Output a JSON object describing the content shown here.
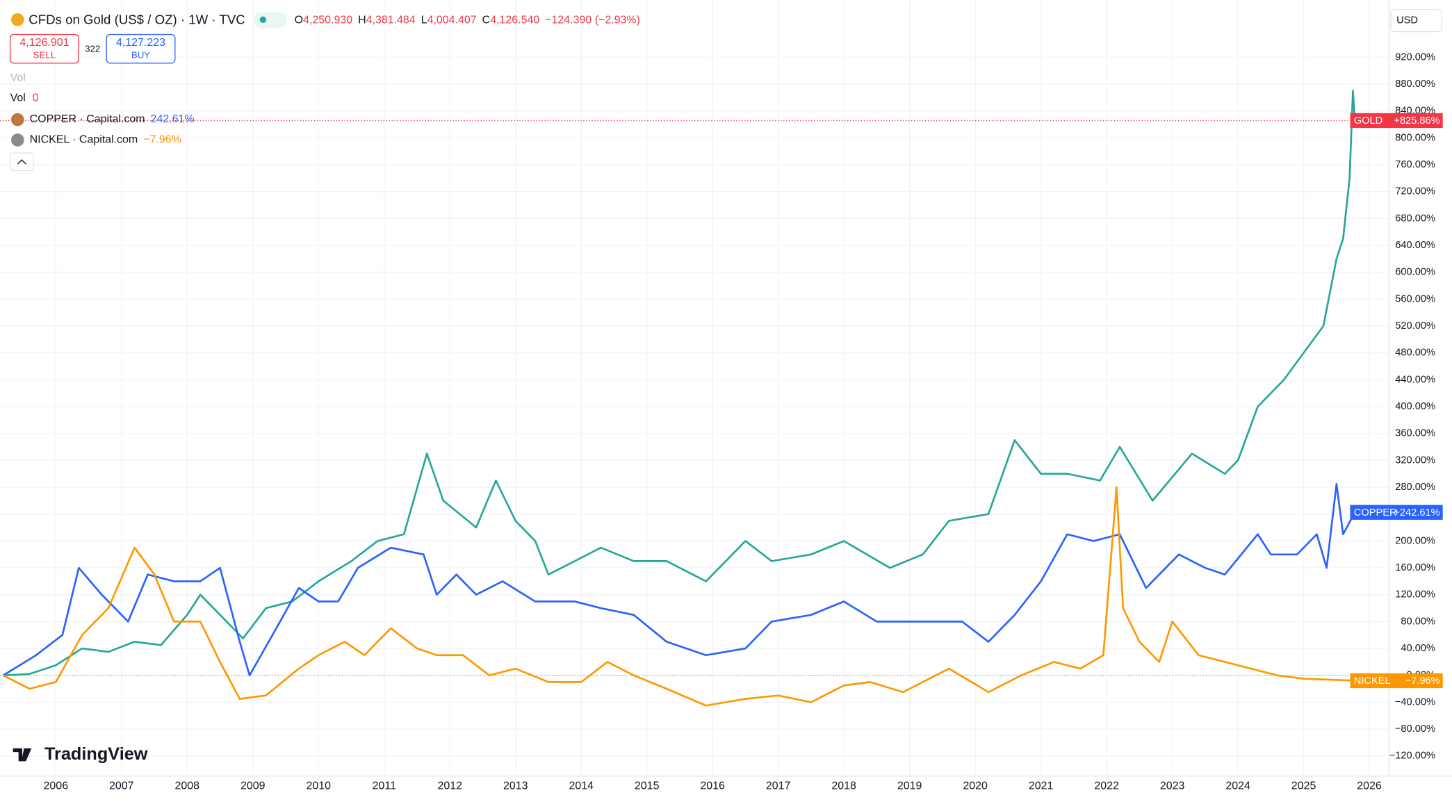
{
  "header": {
    "title": "CFDs on Gold (US$ / OZ) · 1W · TVC",
    "ohlc": [
      {
        "key": "O",
        "value": "4,250.930"
      },
      {
        "key": "H",
        "value": "4,381.484"
      },
      {
        "key": "L",
        "value": "4,004.407"
      },
      {
        "key": "C",
        "value": "4,126.540"
      }
    ],
    "change": "−124.390 (−2.93%)",
    "sell_price": "4,126.901",
    "sell": "SELL",
    "spread": "322",
    "buy_price": "4,127.223",
    "buy": "BUY",
    "vol": "Vol",
    "vol2": "Vol",
    "vol_value": "0",
    "currency": "USD",
    "brand": "TradingView"
  },
  "chart_data": {
    "type": "line",
    "xlim": [
      2005.15,
      2026.3
    ],
    "xticks": [
      2006,
      2007,
      2008,
      2009,
      2010,
      2011,
      2012,
      2013,
      2014,
      2015,
      2016,
      2017,
      2018,
      2019,
      2020,
      2021,
      2022,
      2023,
      2024,
      2025,
      2026
    ],
    "ylim": [
      -150,
      1005
    ],
    "yticks": [
      {
        "value": -120,
        "label": "−120.00%"
      },
      {
        "value": -80,
        "label": "−80.00%"
      },
      {
        "value": -40,
        "label": "−40.00%"
      },
      {
        "value": 0,
        "label": "0.00%"
      },
      {
        "value": 40,
        "label": "40.00%"
      },
      {
        "value": 80,
        "label": "80.00%"
      },
      {
        "value": 120,
        "label": "120.00%"
      },
      {
        "value": 160,
        "label": "160.00%"
      },
      {
        "value": 200,
        "label": "200.00%"
      },
      {
        "value": 240,
        "label": "240.00%"
      },
      {
        "value": 280,
        "label": "280.00%"
      },
      {
        "value": 320,
        "label": "320.00%"
      },
      {
        "value": 360,
        "label": "360.00%"
      },
      {
        "value": 400,
        "label": "400.00%"
      },
      {
        "value": 440,
        "label": "440.00%"
      },
      {
        "value": 480,
        "label": "480.00%"
      },
      {
        "value": 520,
        "label": "520.00%"
      },
      {
        "value": 560,
        "label": "560.00%"
      },
      {
        "value": 600,
        "label": "600.00%"
      },
      {
        "value": 640,
        "label": "640.00%"
      },
      {
        "value": 680,
        "label": "680.00%"
      },
      {
        "value": 720,
        "label": "720.00%"
      },
      {
        "value": 760,
        "label": "760.00%"
      },
      {
        "value": 800,
        "label": "800.00%"
      },
      {
        "value": 840,
        "label": "840.00%"
      },
      {
        "value": 880,
        "label": "880.00%"
      },
      {
        "value": 920,
        "label": "920.00%"
      }
    ],
    "grid": true,
    "series": [
      {
        "name": "GOLD",
        "color": "#26a69a",
        "label_color": "#f23645",
        "last_label": "+825.86%",
        "x": [
          2005.2,
          2005.6,
          2006.0,
          2006.4,
          2006.8,
          2007.2,
          2007.6,
          2008.0,
          2008.2,
          2008.6,
          2008.85,
          2009.2,
          2009.6,
          2010.0,
          2010.5,
          2010.9,
          2011.3,
          2011.65,
          2011.9,
          2012.4,
          2012.7,
          2013.0,
          2013.3,
          2013.5,
          2013.9,
          2014.3,
          2014.8,
          2015.3,
          2015.9,
          2016.5,
          2016.9,
          2017.5,
          2018.0,
          2018.7,
          2019.2,
          2019.6,
          2020.2,
          2020.6,
          2021.0,
          2021.4,
          2021.9,
          2022.2,
          2022.7,
          2023.3,
          2023.8,
          2024.0,
          2024.3,
          2024.7,
          2025.0,
          2025.3,
          2025.5,
          2025.6,
          2025.7,
          2025.75,
          2025.78
        ],
        "values": [
          0,
          2,
          15,
          40,
          35,
          50,
          45,
          90,
          120,
          80,
          55,
          100,
          110,
          140,
          170,
          200,
          210,
          330,
          260,
          220,
          290,
          230,
          200,
          150,
          170,
          190,
          170,
          170,
          140,
          200,
          170,
          180,
          200,
          160,
          180,
          230,
          240,
          350,
          300,
          300,
          290,
          340,
          260,
          330,
          300,
          320,
          400,
          440,
          480,
          520,
          620,
          650,
          740,
          870,
          825.86
        ]
      },
      {
        "name": "COPPER",
        "color": "#2962ff",
        "label_color": "#2962ff",
        "last_label": "+242.61%",
        "legend": "COPPER · Capital.com",
        "legend_value": "242.61%",
        "x": [
          2005.2,
          2005.7,
          2006.1,
          2006.35,
          2006.7,
          2007.1,
          2007.4,
          2007.8,
          2008.2,
          2008.5,
          2008.8,
          2008.95,
          2009.3,
          2009.7,
          2010.0,
          2010.3,
          2010.6,
          2011.1,
          2011.6,
          2011.8,
          2012.1,
          2012.4,
          2012.8,
          2013.3,
          2013.9,
          2014.3,
          2014.8,
          2015.3,
          2015.9,
          2016.5,
          2016.9,
          2017.5,
          2018.0,
          2018.5,
          2019.2,
          2019.8,
          2020.2,
          2020.6,
          2021.0,
          2021.4,
          2021.8,
          2022.2,
          2022.6,
          2023.1,
          2023.5,
          2023.8,
          2024.3,
          2024.5,
          2024.9,
          2025.2,
          2025.35,
          2025.5,
          2025.6,
          2025.78
        ],
        "values": [
          0,
          30,
          60,
          160,
          120,
          80,
          150,
          140,
          140,
          160,
          50,
          0,
          60,
          130,
          110,
          110,
          160,
          190,
          180,
          120,
          150,
          120,
          140,
          110,
          110,
          100,
          90,
          50,
          30,
          40,
          80,
          90,
          110,
          80,
          80,
          80,
          50,
          90,
          140,
          210,
          200,
          210,
          130,
          180,
          160,
          150,
          210,
          180,
          180,
          210,
          160,
          285,
          210,
          242.61
        ]
      },
      {
        "name": "NICKEL",
        "color": "#ff9800",
        "label_color": "#ff9800",
        "last_label": "−7.96%",
        "legend": "NICKEL · Capital.com",
        "legend_value": "−7.96%",
        "x": [
          2005.2,
          2005.6,
          2006.0,
          2006.4,
          2006.8,
          2007.2,
          2007.5,
          2007.8,
          2008.2,
          2008.5,
          2008.8,
          2009.2,
          2009.7,
          2010.0,
          2010.4,
          2010.7,
          2011.1,
          2011.5,
          2011.8,
          2012.2,
          2012.6,
          2013.0,
          2013.5,
          2014.0,
          2014.4,
          2014.8,
          2015.3,
          2015.9,
          2016.5,
          2017.0,
          2017.5,
          2018.0,
          2018.4,
          2018.9,
          2019.6,
          2020.2,
          2020.7,
          2021.2,
          2021.6,
          2021.95,
          2022.15,
          2022.25,
          2022.5,
          2022.8,
          2023.0,
          2023.4,
          2024.6,
          2025.0,
          2025.78
        ],
        "values": [
          0,
          -20,
          -10,
          60,
          100,
          190,
          150,
          80,
          80,
          20,
          -35,
          -30,
          10,
          30,
          50,
          30,
          70,
          40,
          30,
          30,
          0,
          10,
          -10,
          -10,
          20,
          0,
          -20,
          -45,
          -35,
          -30,
          -40,
          -15,
          -10,
          -25,
          10,
          -25,
          0,
          20,
          10,
          30,
          280,
          100,
          50,
          20,
          80,
          30,
          0,
          -5,
          -7.96
        ]
      }
    ]
  }
}
